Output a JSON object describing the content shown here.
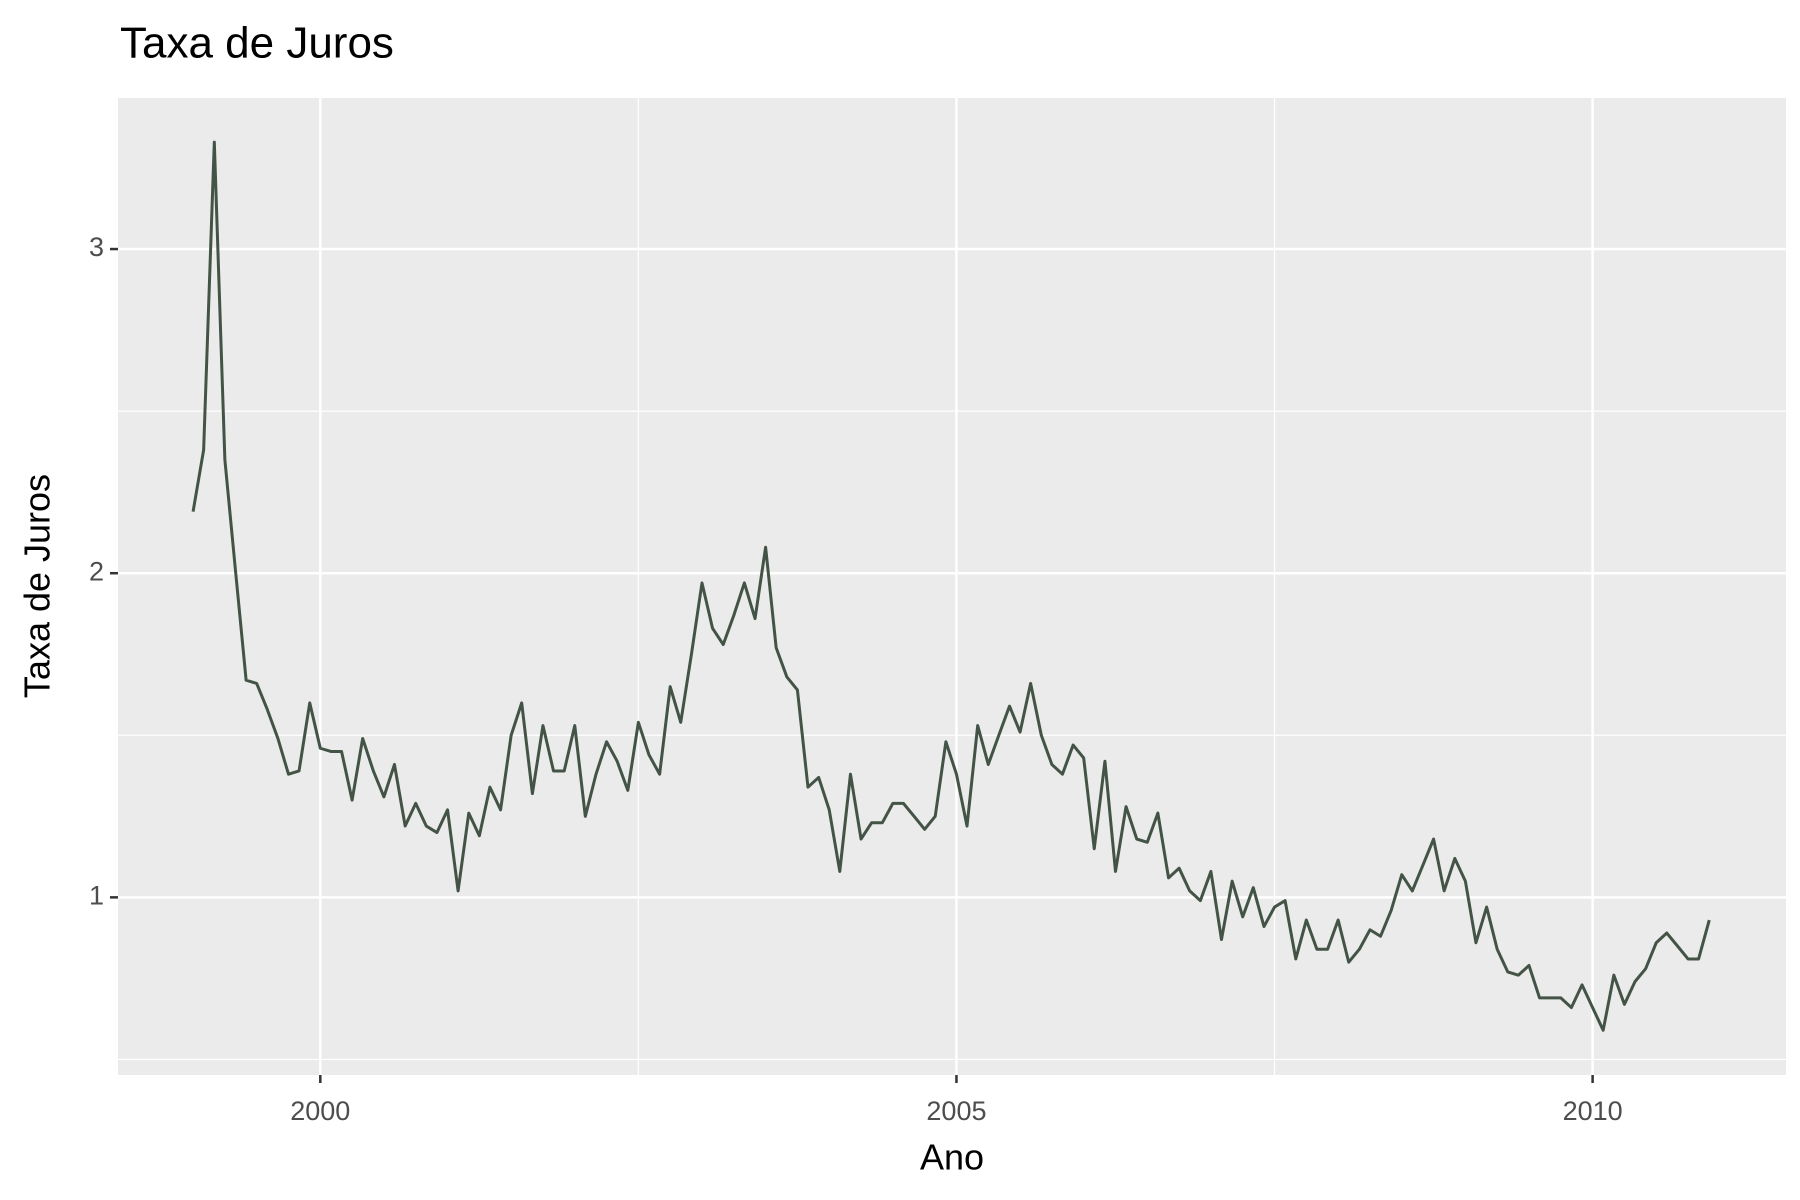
{
  "chart_data": {
    "type": "line",
    "title": "Taxa de Juros",
    "x_label": "Ano",
    "y_label": "Taxa de Juros",
    "x": [
      1999,
      1999.083,
      1999.167,
      1999.25,
      1999.333,
      1999.417,
      1999.5,
      1999.583,
      1999.667,
      1999.75,
      1999.833,
      1999.917,
      2000,
      2000.083,
      2000.167,
      2000.25,
      2000.333,
      2000.417,
      2000.5,
      2000.583,
      2000.667,
      2000.75,
      2000.833,
      2000.917,
      2001,
      2001.083,
      2001.167,
      2001.25,
      2001.333,
      2001.417,
      2001.5,
      2001.583,
      2001.667,
      2001.75,
      2001.833,
      2001.917,
      2002,
      2002.083,
      2002.167,
      2002.25,
      2002.333,
      2002.417,
      2002.5,
      2002.583,
      2002.667,
      2002.75,
      2002.833,
      2002.917,
      2003,
      2003.083,
      2003.167,
      2003.25,
      2003.333,
      2003.417,
      2003.5,
      2003.583,
      2003.667,
      2003.75,
      2003.833,
      2003.917,
      2004,
      2004.083,
      2004.167,
      2004.25,
      2004.333,
      2004.417,
      2004.5,
      2004.583,
      2004.667,
      2004.75,
      2004.833,
      2004.917,
      2005,
      2005.083,
      2005.167,
      2005.25,
      2005.333,
      2005.417,
      2005.5,
      2005.583,
      2005.667,
      2005.75,
      2005.833,
      2005.917,
      2006,
      2006.083,
      2006.167,
      2006.25,
      2006.333,
      2006.417,
      2006.5,
      2006.583,
      2006.667,
      2006.75,
      2006.833,
      2006.917,
      2007,
      2007.083,
      2007.167,
      2007.25,
      2007.333,
      2007.417,
      2007.5,
      2007.583,
      2007.667,
      2007.75,
      2007.833,
      2007.917,
      2008,
      2008.083,
      2008.167,
      2008.25,
      2008.333,
      2008.417,
      2008.5,
      2008.583,
      2008.667,
      2008.75,
      2008.833,
      2008.917,
      2009,
      2009.083,
      2009.167,
      2009.25,
      2009.333,
      2009.417,
      2009.5,
      2009.583,
      2009.667,
      2009.75,
      2009.833,
      2009.917,
      2010,
      2010.083,
      2010.167,
      2010.25,
      2010.333,
      2010.417,
      2010.5,
      2010.583,
      2010.667,
      2010.75,
      2010.833,
      2010.917
    ],
    "series": [
      {
        "name": "Taxa de Juros",
        "color": "#435446",
        "values": [
          2.19,
          2.38,
          3.33,
          2.35,
          2.01,
          1.67,
          1.66,
          1.58,
          1.49,
          1.38,
          1.39,
          1.6,
          1.46,
          1.45,
          1.45,
          1.3,
          1.49,
          1.39,
          1.31,
          1.41,
          1.22,
          1.29,
          1.22,
          1.2,
          1.27,
          1.02,
          1.26,
          1.19,
          1.34,
          1.27,
          1.5,
          1.6,
          1.32,
          1.53,
          1.39,
          1.39,
          1.53,
          1.25,
          1.38,
          1.48,
          1.42,
          1.33,
          1.54,
          1.44,
          1.38,
          1.65,
          1.54,
          1.75,
          1.97,
          1.83,
          1.78,
          1.87,
          1.97,
          1.86,
          2.08,
          1.77,
          1.68,
          1.64,
          1.34,
          1.37,
          1.27,
          1.08,
          1.38,
          1.18,
          1.23,
          1.23,
          1.29,
          1.29,
          1.25,
          1.21,
          1.25,
          1.48,
          1.38,
          1.22,
          1.53,
          1.41,
          1.5,
          1.59,
          1.51,
          1.66,
          1.5,
          1.41,
          1.38,
          1.47,
          1.43,
          1.15,
          1.42,
          1.08,
          1.28,
          1.18,
          1.17,
          1.26,
          1.06,
          1.09,
          1.02,
          0.99,
          1.08,
          0.87,
          1.05,
          0.94,
          1.03,
          0.91,
          0.97,
          0.99,
          0.81,
          0.93,
          0.84,
          0.84,
          0.93,
          0.8,
          0.84,
          0.9,
          0.88,
          0.96,
          1.07,
          1.02,
          1.1,
          1.18,
          1.02,
          1.12,
          1.05,
          0.86,
          0.97,
          0.84,
          0.77,
          0.76,
          0.79,
          0.69,
          0.69,
          0.69,
          0.66,
          0.73,
          0.66,
          0.59,
          0.76,
          0.67,
          0.74,
          0.78,
          0.86,
          0.89,
          0.85,
          0.81,
          0.81,
          0.93
        ]
      }
    ],
    "xlim": [
      1998.41,
      2011.52
    ],
    "ylim": [
      0.452,
      3.466
    ],
    "xticks": [
      2000,
      2005,
      2010
    ],
    "yticks": [
      1,
      2,
      3
    ],
    "xminorticks": [
      2002.5,
      2007.5
    ],
    "yminorticks": [
      0.5,
      1.5,
      2.5
    ],
    "grid": true,
    "panel_color": "#ebebeb"
  }
}
